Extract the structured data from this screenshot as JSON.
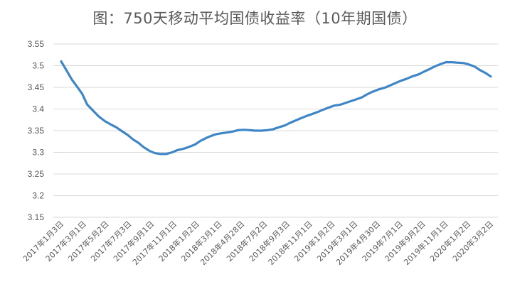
{
  "chart_data": {
    "type": "line",
    "title": "图：750天移动平均国债收益率（10年期国债）",
    "xlabel": "",
    "ylabel": "",
    "ylim": [
      3.15,
      3.55
    ],
    "yticks": [
      3.15,
      3.2,
      3.25,
      3.3,
      3.35,
      3.4,
      3.45,
      3.5,
      3.55
    ],
    "ytick_labels": [
      "3.15",
      "3.2",
      "3.25",
      "3.3",
      "3.35",
      "3.4",
      "3.45",
      "3.5",
      "3.55"
    ],
    "grid": true,
    "legend": "none",
    "x_tick_labels": [
      "2017年1月3日",
      "2017年3月1日",
      "2017年5月2日",
      "2017年7月3日",
      "2017年9月1日",
      "2017年11月1日",
      "2018年1月2日",
      "2018年3月1日",
      "2018年4月28日",
      "2018年7月2日",
      "2018年9月3日",
      "2018年11月1日",
      "2019年1月2日",
      "2019年3月1日",
      "2019年4月30日",
      "2019年7月1日",
      "2019年9月2日",
      "2019年11月1日",
      "2020年1月2日",
      "2020年3月2日"
    ],
    "line_color": "#3f86c6",
    "series": [
      {
        "points": [
          [
            "2017-01-03",
            3.51
          ],
          [
            "2017-01-17",
            3.49
          ],
          [
            "2017-02-01",
            3.468
          ],
          [
            "2017-02-15",
            3.452
          ],
          [
            "2017-03-01",
            3.435
          ],
          [
            "2017-03-15",
            3.41
          ],
          [
            "2017-04-01",
            3.395
          ],
          [
            "2017-04-15",
            3.383
          ],
          [
            "2017-05-02",
            3.372
          ],
          [
            "2017-05-16",
            3.365
          ],
          [
            "2017-06-01",
            3.358
          ],
          [
            "2017-06-15",
            3.35
          ],
          [
            "2017-07-03",
            3.34
          ],
          [
            "2017-07-17",
            3.33
          ],
          [
            "2017-08-01",
            3.322
          ],
          [
            "2017-08-15",
            3.312
          ],
          [
            "2017-09-01",
            3.303
          ],
          [
            "2017-09-15",
            3.298
          ],
          [
            "2017-10-01",
            3.296
          ],
          [
            "2017-10-15",
            3.296
          ],
          [
            "2017-11-01",
            3.3
          ],
          [
            "2017-11-15",
            3.305
          ],
          [
            "2017-12-01",
            3.308
          ],
          [
            "2017-12-15",
            3.312
          ],
          [
            "2018-01-02",
            3.318
          ],
          [
            "2018-01-16",
            3.326
          ],
          [
            "2018-02-01",
            3.333
          ],
          [
            "2018-02-15",
            3.338
          ],
          [
            "2018-03-01",
            3.342
          ],
          [
            "2018-03-15",
            3.344
          ],
          [
            "2018-04-01",
            3.346
          ],
          [
            "2018-04-15",
            3.348
          ],
          [
            "2018-04-28",
            3.351
          ],
          [
            "2018-05-15",
            3.352
          ],
          [
            "2018-06-01",
            3.351
          ],
          [
            "2018-06-15",
            3.35
          ],
          [
            "2018-07-02",
            3.35
          ],
          [
            "2018-07-16",
            3.351
          ],
          [
            "2018-08-01",
            3.353
          ],
          [
            "2018-08-15",
            3.357
          ],
          [
            "2018-09-03",
            3.362
          ],
          [
            "2018-09-17",
            3.368
          ],
          [
            "2018-10-01",
            3.373
          ],
          [
            "2018-10-15",
            3.378
          ],
          [
            "2018-11-01",
            3.384
          ],
          [
            "2018-11-15",
            3.388
          ],
          [
            "2018-12-01",
            3.393
          ],
          [
            "2018-12-15",
            3.398
          ],
          [
            "2019-01-02",
            3.404
          ],
          [
            "2019-01-16",
            3.408
          ],
          [
            "2019-02-01",
            3.41
          ],
          [
            "2019-02-15",
            3.414
          ],
          [
            "2019-03-01",
            3.418
          ],
          [
            "2019-03-15",
            3.422
          ],
          [
            "2019-04-01",
            3.427
          ],
          [
            "2019-04-15",
            3.434
          ],
          [
            "2019-04-30",
            3.44
          ],
          [
            "2019-05-15",
            3.445
          ],
          [
            "2019-06-01",
            3.449
          ],
          [
            "2019-06-15",
            3.454
          ],
          [
            "2019-07-01",
            3.46
          ],
          [
            "2019-07-15",
            3.465
          ],
          [
            "2019-08-01",
            3.47
          ],
          [
            "2019-08-15",
            3.475
          ],
          [
            "2019-09-02",
            3.48
          ],
          [
            "2019-09-16",
            3.486
          ],
          [
            "2019-10-01",
            3.492
          ],
          [
            "2019-10-15",
            3.498
          ],
          [
            "2019-11-01",
            3.504
          ],
          [
            "2019-11-15",
            3.508
          ],
          [
            "2019-12-01",
            3.508
          ],
          [
            "2019-12-15",
            3.507
          ],
          [
            "2020-01-02",
            3.506
          ],
          [
            "2020-01-16",
            3.503
          ],
          [
            "2020-02-01",
            3.498
          ],
          [
            "2020-02-15",
            3.49
          ],
          [
            "2020-03-02",
            3.483
          ],
          [
            "2020-03-16",
            3.475
          ]
        ]
      }
    ]
  }
}
